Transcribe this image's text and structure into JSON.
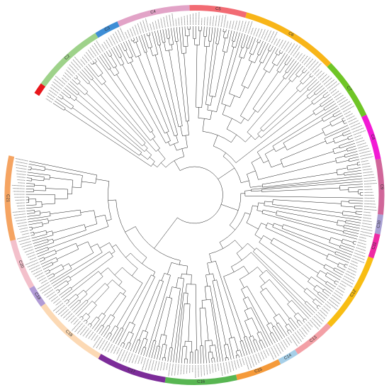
{
  "figure": {
    "type": "circular phylogenetic tree",
    "leaf_count": 360,
    "branch_color": "#000000"
  },
  "clades": [
    {
      "label": "",
      "color": "#e8161b"
    },
    {
      "label": "C2",
      "color": "#9ed28a"
    },
    {
      "label": "C3",
      "color": "#3e8ed6"
    },
    {
      "label": "C4",
      "color": "#e2a3c7"
    },
    {
      "label": "C5",
      "color": "#f26b73"
    },
    {
      "label": "C6",
      "color": "#f8b518"
    },
    {
      "label": "C7",
      "color": "#6fc526"
    },
    {
      "label": "C8",
      "color": "#f21ad5"
    },
    {
      "label": "C9",
      "color": "#d06699"
    },
    {
      "label": "C10",
      "color": "#a9a0d3"
    },
    {
      "label": "C11",
      "color": "#ee2aa3"
    },
    {
      "label": "C12",
      "color": "#f8bd13"
    },
    {
      "label": "C13",
      "color": "#f3a0a6"
    },
    {
      "label": "C14",
      "color": "#a6cfe8"
    },
    {
      "label": "C15",
      "color": "#f59a3a"
    },
    {
      "label": "C16",
      "color": "#58b652"
    },
    {
      "label": "C17",
      "color": "#7c2c99"
    },
    {
      "label": "C18",
      "color": "#fcd9b4"
    },
    {
      "label": "C19",
      "color": "#b19bd6"
    },
    {
      "label": "C20",
      "color": "#f3c0cb"
    },
    {
      "label": "C21",
      "color": "#f5a462"
    }
  ]
}
